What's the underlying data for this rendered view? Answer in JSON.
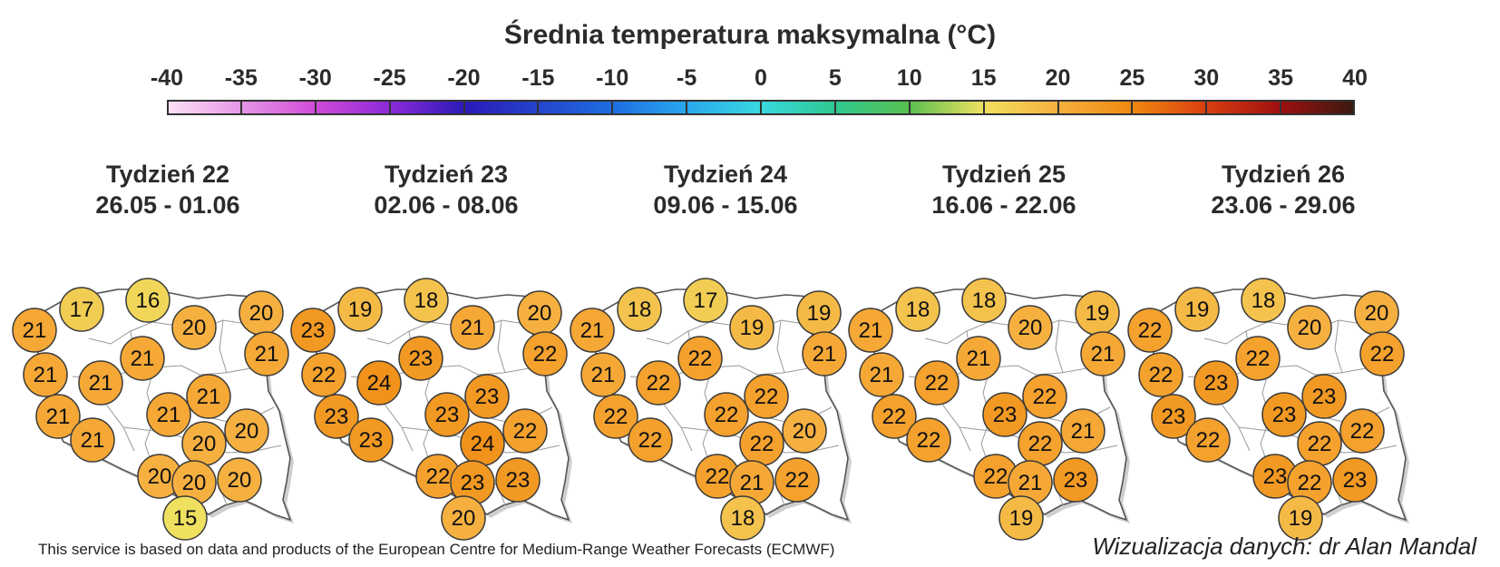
{
  "title": "Średnia temperatura maksymalna (°C)",
  "colorbar": {
    "ticks": [
      "-40",
      "-35",
      "-30",
      "-25",
      "-20",
      "-15",
      "-10",
      "-5",
      "0",
      "5",
      "10",
      "15",
      "20",
      "25",
      "30",
      "35",
      "40"
    ],
    "stops": [
      {
        "v": -40,
        "c": "#fce0f5"
      },
      {
        "v": -30,
        "c": "#d04ad8"
      },
      {
        "v": -25,
        "c": "#8a2ad8"
      },
      {
        "v": -20,
        "c": "#2a1ab8"
      },
      {
        "v": -10,
        "c": "#1e6ee0"
      },
      {
        "v": -5,
        "c": "#29a8ee"
      },
      {
        "v": 0,
        "c": "#3ad8e0"
      },
      {
        "v": 5,
        "c": "#2ec890"
      },
      {
        "v": 10,
        "c": "#58c050"
      },
      {
        "v": 15,
        "c": "#f0e060"
      },
      {
        "v": 20,
        "c": "#f6b040"
      },
      {
        "v": 25,
        "c": "#f08a10"
      },
      {
        "v": 30,
        "c": "#d84010"
      },
      {
        "v": 35,
        "c": "#a01010"
      },
      {
        "v": 40,
        "c": "#3a1a10"
      }
    ]
  },
  "weeks": [
    {
      "label": "Tydzień 22",
      "dates": "26.05 - 01.06",
      "values": [
        21,
        17,
        16,
        20,
        20,
        21,
        21,
        21,
        21,
        21,
        21,
        21,
        21,
        20,
        20,
        20,
        20,
        20,
        15
      ]
    },
    {
      "label": "Tydzień 23",
      "dates": "02.06 - 08.06",
      "values": [
        23,
        19,
        18,
        21,
        20,
        23,
        22,
        22,
        24,
        23,
        23,
        23,
        23,
        24,
        22,
        22,
        23,
        23,
        20
      ]
    },
    {
      "label": "Tydzień 24",
      "dates": "09.06 - 15.06",
      "values": [
        21,
        18,
        17,
        19,
        19,
        22,
        21,
        21,
        22,
        22,
        22,
        22,
        22,
        22,
        20,
        22,
        21,
        22,
        18
      ]
    },
    {
      "label": "Tydzień 25",
      "dates": "16.06 - 22.06",
      "values": [
        21,
        18,
        18,
        20,
        19,
        21,
        21,
        21,
        22,
        22,
        22,
        23,
        22,
        22,
        21,
        22,
        21,
        23,
        19
      ]
    },
    {
      "label": "Tydzień 26",
      "dates": "23.06 - 29.06",
      "values": [
        22,
        19,
        18,
        20,
        20,
        22,
        22,
        22,
        23,
        23,
        23,
        23,
        22,
        22,
        22,
        23,
        22,
        23,
        19
      ]
    }
  ],
  "footer": {
    "source": "This service is based on data and products of the European Centre for Medium-Range Weather Forecasts (ECMWF)",
    "credit": "Wizualizacja danych: dr Alan Mandal"
  }
}
